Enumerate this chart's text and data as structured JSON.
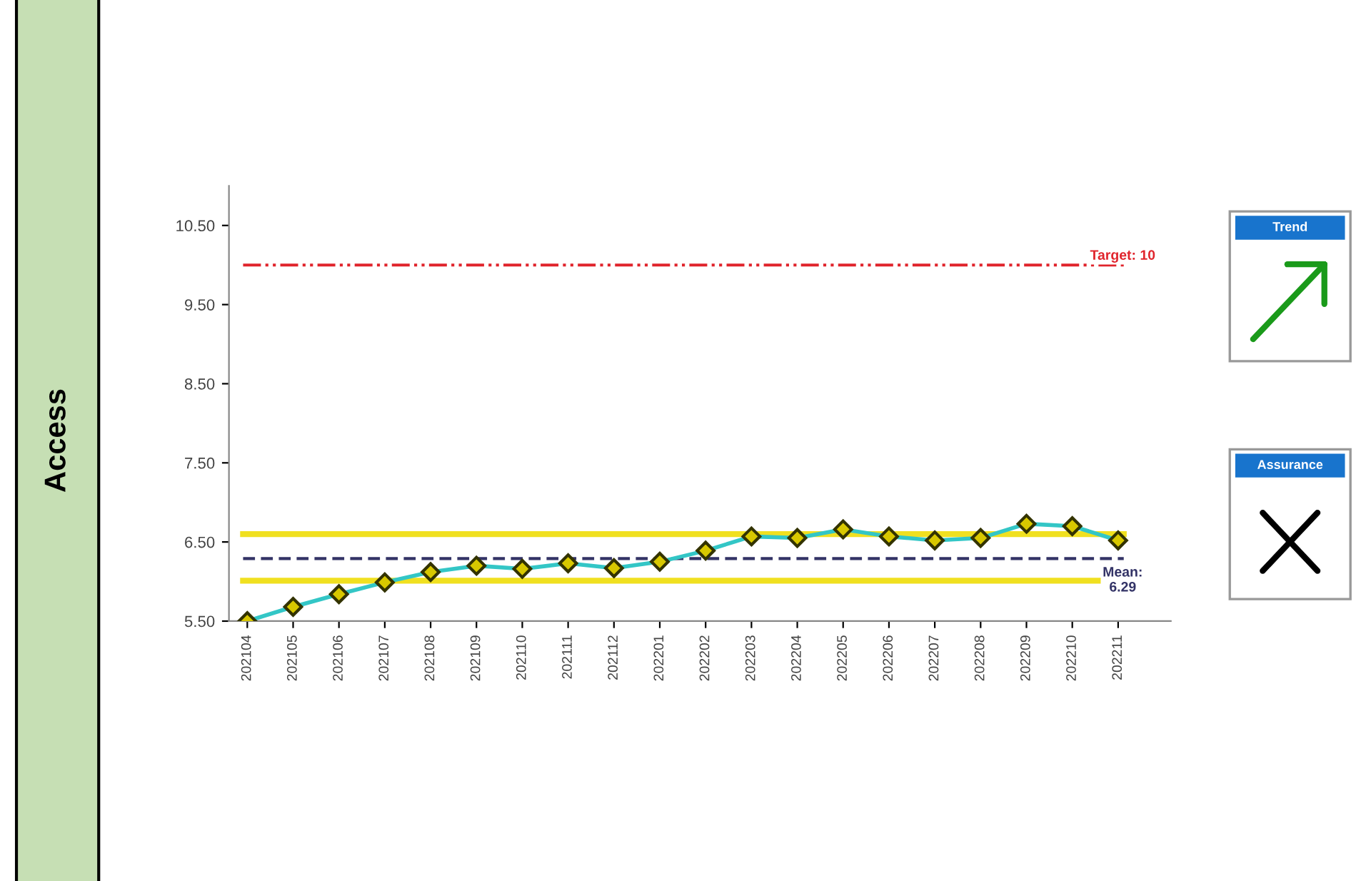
{
  "chart_data": {
    "type": "line",
    "categories": [
      "202104",
      "202105",
      "202106",
      "202107",
      "202108",
      "202109",
      "202110",
      "202111",
      "202112",
      "202201",
      "202202",
      "202203",
      "202204",
      "202205",
      "202206",
      "202207",
      "202208",
      "202209",
      "202210",
      "202211"
    ],
    "series": [
      {
        "color": "#33c6c6",
        "values": [
          5.5,
          5.68,
          5.84,
          5.99,
          6.12,
          6.2,
          6.16,
          6.23,
          6.17,
          6.25,
          6.39,
          6.57,
          6.55,
          6.66,
          6.57,
          6.52,
          6.55,
          6.73,
          6.7,
          6.52
        ]
      }
    ],
    "marker": "diamond",
    "ylim": [
      5.5,
      11.0
    ],
    "yticks": [
      {
        "value": 5.5,
        "label": "5.50"
      },
      {
        "value": 6.5,
        "label": "6.50"
      },
      {
        "value": 7.5,
        "label": "7.50"
      },
      {
        "value": 8.5,
        "label": "8.50"
      },
      {
        "value": 9.5,
        "label": "9.50"
      },
      {
        "value": 10.5,
        "label": "10.50"
      }
    ],
    "ref_lines": [
      {
        "axis": "y",
        "value": 10,
        "label": "Target: 10",
        "color": "#e0242c",
        "line_style": "dashdot"
      },
      {
        "axis": "y",
        "value": 6.29,
        "label": "Mean:\n6.29",
        "color": "#333366",
        "line_style": "dashed"
      },
      {
        "axis": "y",
        "value": 6.6,
        "color": "#f0e020",
        "line_style": "solid"
      },
      {
        "axis": "y",
        "value": 6.01,
        "color": "#f0e020",
        "line_style": "solid"
      }
    ],
    "annotations": [
      "Access",
      "Trend",
      "Assurance"
    ],
    "grid": false,
    "legend": false
  }
}
